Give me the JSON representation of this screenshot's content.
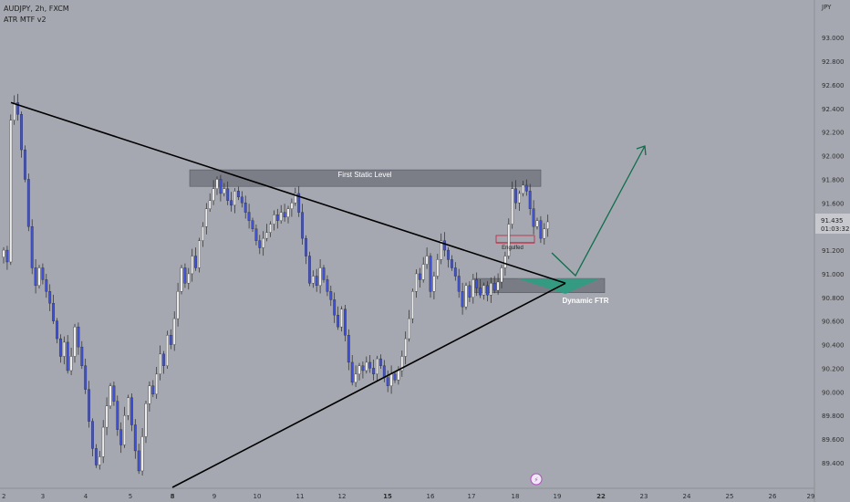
{
  "header": {
    "symbol": "AUDJPY, 2h, FXCM",
    "indicator": "ATR MTF v2"
  },
  "colors": {
    "background": "#a5a8b0",
    "bull_candle": "#ececec",
    "bear_candle": "#3f51d8",
    "wick": "#2b2b2b",
    "trendline": "#000000",
    "zone_fill": "#6e7079",
    "ftr_fill": "#2e9d82",
    "projection": "#0e6e4b",
    "engulf_line": "#c0223a",
    "axis_text": "#2f2f2f",
    "price_tag_bg": "#c7c9ce"
  },
  "chart_data": {
    "type": "candlestick",
    "title": "AUDJPY, 2h, FXCM",
    "ylabel": "JPY",
    "ylim": [
      89.26,
      93.28
    ],
    "y_ticks": [
      "93.000",
      "92.800",
      "92.600",
      "92.400",
      "92.200",
      "92.000",
      "91.800",
      "91.600",
      "91.400",
      "91.200",
      "91.000",
      "90.800",
      "90.600",
      "90.400",
      "90.200",
      "90.000",
      "89.800",
      "89.600",
      "89.400"
    ],
    "x_ticks": [
      "2",
      "3",
      "4",
      "5",
      "8",
      "9",
      "10",
      "11",
      "12",
      "15",
      "16",
      "17",
      "18",
      "19",
      "22",
      "23",
      "24",
      "25",
      "26",
      "29"
    ],
    "bold_x_ticks": [
      "8",
      "15",
      "22"
    ],
    "last_price": "91.435",
    "countdown": "01:03:32",
    "annotations": {
      "static_level": "First Static Level",
      "dynamic_ftr": "Dynamic FTR",
      "engulfed": "Engulfed"
    },
    "zones": {
      "static_level_range": [
        91.74,
        91.88
      ],
      "dynamic_ftr_range": [
        90.84,
        90.96
      ]
    },
    "trendlines": [
      {
        "from": [
          "2",
          92.45
        ],
        "to": [
          "19",
          90.92
        ]
      },
      {
        "from": [
          "8",
          89.26
        ],
        "to": [
          "19",
          90.92
        ]
      }
    ],
    "closes": [
      91.2,
      91.1,
      92.3,
      92.45,
      92.35,
      92.05,
      91.8,
      91.4,
      91.05,
      90.9,
      91.05,
      90.95,
      90.85,
      90.75,
      90.6,
      90.45,
      90.3,
      90.42,
      90.18,
      90.3,
      90.55,
      90.38,
      90.22,
      90.02,
      89.75,
      89.52,
      89.38,
      89.45,
      89.7,
      89.88,
      90.05,
      89.92,
      89.68,
      89.55,
      89.8,
      89.95,
      89.72,
      89.5,
      89.33,
      89.62,
      89.9,
      90.05,
      89.98,
      90.15,
      90.32,
      90.22,
      90.48,
      90.4,
      90.62,
      90.85,
      91.05,
      90.92,
      91.0,
      91.15,
      91.05,
      91.28,
      91.4,
      91.55,
      91.62,
      91.72,
      91.8,
      91.68,
      91.72,
      91.62,
      91.58,
      91.7,
      91.65,
      91.6,
      91.52,
      91.45,
      91.38,
      91.28,
      91.22,
      91.3,
      91.35,
      91.42,
      91.5,
      91.45,
      91.52,
      91.48,
      91.55,
      91.6,
      91.68,
      91.52,
      91.3,
      91.15,
      90.92,
      90.98,
      90.9,
      91.05,
      90.95,
      90.85,
      90.78,
      90.65,
      90.55,
      90.7,
      90.48,
      90.25,
      90.08,
      90.15,
      90.22,
      90.18,
      90.25,
      90.2,
      90.15,
      90.28,
      90.22,
      90.12,
      90.05,
      90.15,
      90.1,
      90.18,
      90.3,
      90.45,
      90.62,
      90.85,
      91.0,
      90.95,
      91.08,
      91.15,
      90.85,
      90.98,
      91.12,
      91.28,
      91.2,
      91.12,
      91.05,
      90.98,
      90.85,
      90.72,
      90.9,
      90.8,
      90.95,
      90.88,
      90.82,
      90.9,
      90.82,
      90.92,
      90.86,
      90.93,
      91.05,
      91.15,
      91.42,
      91.72,
      91.6,
      91.68,
      91.75,
      91.7,
      91.55,
      91.4,
      91.45,
      91.3,
      91.38,
      91.44
    ]
  }
}
